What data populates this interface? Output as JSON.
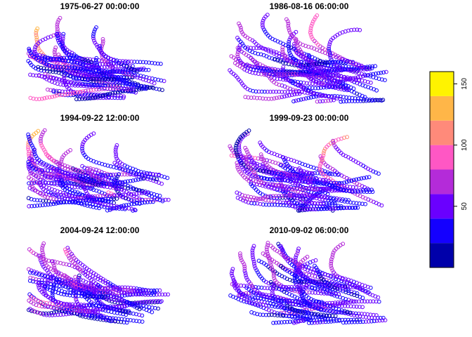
{
  "chart_data": {
    "type": "scatter",
    "description_style": "small-multiple maps of storm tracks colored by wind speed",
    "panels": [
      {
        "title": "1975-06-27 00:00:00"
      },
      {
        "title": "1986-08-16 06:00:00"
      },
      {
        "title": "1994-09-22 12:00:00"
      },
      {
        "title": "1999-09-23 00:00:00"
      },
      {
        "title": "2004-09-24 12:00:00"
      },
      {
        "title": "2010-09-02 06:00:00"
      }
    ],
    "marker": "open-circle",
    "color_scale": {
      "range": [
        0,
        160
      ],
      "breaks": [
        0,
        20,
        40,
        60,
        80,
        100,
        120,
        140,
        160
      ],
      "colors": [
        "#0000AA",
        "#1400FF",
        "#6A00FF",
        "#B42BD9",
        "#FF57C4",
        "#FF8A7A",
        "#FFB648",
        "#FFF300"
      ],
      "tick_values": [
        50,
        100,
        150
      ],
      "tick_labels": [
        "50",
        "100",
        "150"
      ]
    }
  }
}
